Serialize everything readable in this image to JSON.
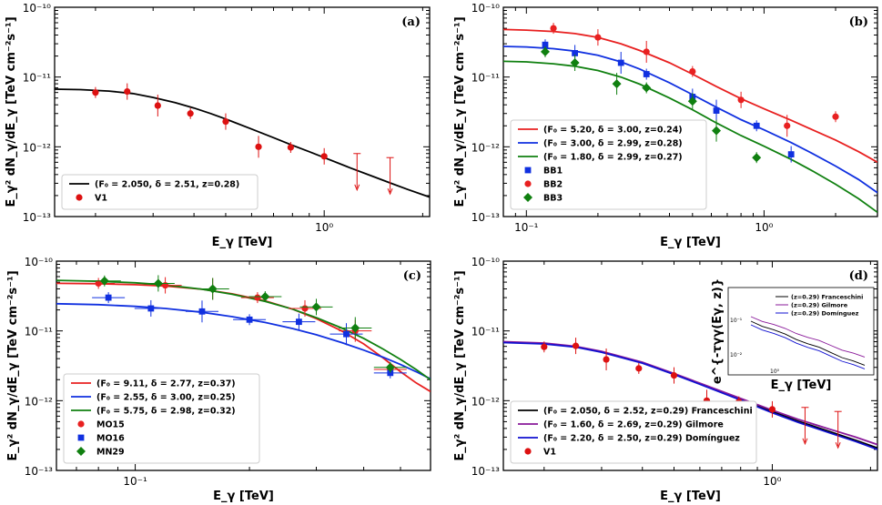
{
  "chart_data": [
    {
      "panel": "(a)",
      "type": "line",
      "xscale": "log",
      "yscale": "log",
      "xlim": [
        0.15,
        2.1
      ],
      "ylim": [
        1e-13,
        1e-10
      ],
      "xlabel": "E_γ [TeV]",
      "ylabel": "E_γ² dN_γ/dE_γ [TeV cm⁻²s⁻¹]",
      "xticks": [
        {
          "v": 1,
          "label": "10⁰"
        }
      ],
      "yticks": [
        {
          "v": 1e-13,
          "label": "10⁻¹³"
        },
        {
          "v": 1e-12,
          "label": "10⁻¹²"
        },
        {
          "v": 1e-11,
          "label": "10⁻¹¹"
        },
        {
          "v": 1e-10,
          "label": "10⁻¹⁰"
        }
      ],
      "legend_position": "bottom-left",
      "series": [
        {
          "name": "(F₀ = 2.050, δ = 2.51, z=0.28)",
          "color": "#000000",
          "shape": "line",
          "x": [
            0.15,
            0.18,
            0.22,
            0.26,
            0.3,
            0.35,
            0.4,
            0.45,
            0.5,
            0.6,
            0.7,
            0.8,
            0.9,
            1.0,
            1.2,
            1.4,
            1.6,
            1.8,
            2.1
          ],
          "y": [
            6.7e-12,
            6.6e-12,
            6.3e-12,
            5.8e-12,
            5.1e-12,
            4.3e-12,
            3.6e-12,
            3e-12,
            2.5e-12,
            1.8e-12,
            1.35e-12,
            1.05e-12,
            8.5e-13,
            7e-13,
            5e-13,
            3.8e-13,
            3e-13,
            2.45e-13,
            1.9e-13
          ]
        }
      ],
      "points": [
        {
          "name": "V1",
          "color": "#dd1111",
          "shape": "circle",
          "x": [
            0.2,
            0.25,
            0.31,
            0.39,
            0.5,
            0.63,
            0.79,
            1.0,
            1.26,
            1.59
          ],
          "y": [
            6e-12,
            6.2e-12,
            3.9e-12,
            3e-12,
            2.3e-12,
            1e-12,
            9.8e-13,
            7.3e-13,
            null,
            null
          ],
          "upper_limits": [
            null,
            null,
            null,
            null,
            null,
            null,
            null,
            null,
            8e-13,
            7e-13
          ]
        }
      ],
      "label": "(a)"
    },
    {
      "panel": "(b)",
      "type": "line",
      "xscale": "log",
      "yscale": "log",
      "xlim": [
        0.08,
        3.0
      ],
      "ylim": [
        1e-13,
        1e-10
      ],
      "xlabel": "E_γ [TeV]",
      "ylabel": "E_γ² dN_γ/dE_γ [TeV cm⁻²s⁻¹]",
      "xticks": [
        {
          "v": 0.1,
          "label": "10⁻¹"
        },
        {
          "v": 1,
          "label": "10⁰"
        }
      ],
      "yticks": [
        {
          "v": 1e-13,
          "label": "10⁻¹³"
        },
        {
          "v": 1e-12,
          "label": "10⁻¹²"
        },
        {
          "v": 1e-11,
          "label": "10⁻¹¹"
        },
        {
          "v": 1e-10,
          "label": "10⁻¹⁰"
        }
      ],
      "legend_position": "bottom-left",
      "series": [
        {
          "name": "(F₀ = 5.20, δ = 3.00, z=0.24)",
          "color": "#e82020",
          "shape": "line",
          "x": [
            0.08,
            0.1,
            0.13,
            0.16,
            0.2,
            0.25,
            0.3,
            0.4,
            0.5,
            0.63,
            0.8,
            1.0,
            1.3,
            1.6,
            2.0,
            2.5,
            3.0
          ],
          "y": [
            4.8e-11,
            4.7e-11,
            4.5e-11,
            4.2e-11,
            3.7e-11,
            3e-11,
            2.4e-11,
            1.6e-11,
            1.1e-11,
            7.3e-12,
            4.9e-12,
            3.5e-12,
            2.4e-12,
            1.75e-12,
            1.25e-12,
            8.5e-13,
            6e-13
          ]
        },
        {
          "name": "(F₀ = 3.00, δ = 2.99, z=0.28)",
          "color": "#1030e0",
          "shape": "line",
          "x": [
            0.08,
            0.1,
            0.13,
            0.16,
            0.2,
            0.25,
            0.3,
            0.4,
            0.5,
            0.63,
            0.8,
            1.0,
            1.3,
            1.6,
            2.0,
            2.5,
            3.0
          ],
          "y": [
            2.75e-11,
            2.7e-11,
            2.55e-11,
            2.35e-11,
            2.05e-11,
            1.65e-11,
            1.3e-11,
            8.3e-12,
            5.6e-12,
            3.7e-12,
            2.45e-12,
            1.75e-12,
            1.15e-12,
            8e-13,
            5.3e-13,
            3.4e-13,
            2.2e-13
          ]
        },
        {
          "name": "(F₀ = 1.80, δ = 2.99, z=0.27)",
          "color": "#108010",
          "shape": "line",
          "x": [
            0.08,
            0.1,
            0.13,
            0.16,
            0.2,
            0.25,
            0.3,
            0.4,
            0.5,
            0.63,
            0.8,
            1.0,
            1.3,
            1.6,
            2.0,
            2.5,
            3.0
          ],
          "y": [
            1.68e-11,
            1.65e-11,
            1.55e-11,
            1.43e-11,
            1.24e-11,
            1e-11,
            7.9e-12,
            5e-12,
            3.4e-12,
            2.2e-12,
            1.45e-12,
            1.02e-12,
            6.6e-13,
            4.5e-13,
            2.9e-13,
            1.8e-13,
            1.15e-13
          ]
        }
      ],
      "points": [
        {
          "name": "BB1",
          "color": "#1030e0",
          "shape": "square",
          "x": [
            0.12,
            0.16,
            0.25,
            0.32,
            0.5,
            0.63,
            0.93,
            1.3
          ],
          "y": [
            2.9e-11,
            2.2e-11,
            1.6e-11,
            1.1e-11,
            5.2e-12,
            3.3e-12,
            2e-12,
            7.8e-13
          ]
        },
        {
          "name": "BB2",
          "color": "#e82020",
          "shape": "circle",
          "x": [
            0.13,
            0.2,
            0.32,
            0.5,
            0.8,
            1.25,
            2.0
          ],
          "y": [
            5e-11,
            3.7e-11,
            2.3e-11,
            1.2e-11,
            4.7e-12,
            2e-12,
            2.7e-12
          ]
        },
        {
          "name": "BB3",
          "color": "#108010",
          "shape": "diamond",
          "x": [
            0.12,
            0.16,
            0.24,
            0.32,
            0.5,
            0.63,
            0.93
          ],
          "y": [
            2.3e-11,
            1.6e-11,
            8e-12,
            7e-12,
            4.5e-12,
            1.7e-12,
            7e-13
          ]
        }
      ],
      "label": "(b)"
    },
    {
      "panel": "(c)",
      "type": "line",
      "xscale": "log",
      "yscale": "log",
      "xlim": [
        0.062,
        0.6
      ],
      "ylim": [
        1e-13,
        1e-10
      ],
      "xlabel": "E_γ [TeV]",
      "ylabel": "E_γ² dN_γ/dE_γ [TeV cm⁻²s⁻¹]",
      "xticks": [
        {
          "v": 0.1,
          "label": "10⁻¹"
        }
      ],
      "yticks": [
        {
          "v": 1e-13,
          "label": "10⁻¹³"
        },
        {
          "v": 1e-12,
          "label": "10⁻¹²"
        },
        {
          "v": 1e-11,
          "label": "10⁻¹¹"
        },
        {
          "v": 1e-10,
          "label": "10⁻¹⁰"
        }
      ],
      "legend_position": "bottom-left",
      "series": [
        {
          "name": "(F₀ = 9.11, δ = 2.77, z=0.37)",
          "color": "#e82020",
          "shape": "line",
          "x": [
            0.062,
            0.08,
            0.1,
            0.12,
            0.15,
            0.18,
            0.22,
            0.26,
            0.3,
            0.35,
            0.4,
            0.45,
            0.5,
            0.55,
            0.6
          ],
          "y": [
            4.8e-11,
            4.75e-11,
            4.6e-11,
            4.4e-11,
            3.95e-11,
            3.4e-11,
            2.7e-11,
            2.05e-11,
            1.5e-11,
            1e-11,
            6.5e-12,
            4.1e-12,
            2.6e-12,
            1.8e-12,
            1.35e-12
          ]
        },
        {
          "name": "(F₀ = 2.55, δ = 3.00, z=0.25)",
          "color": "#1030e0",
          "shape": "line",
          "x": [
            0.062,
            0.08,
            0.1,
            0.12,
            0.15,
            0.18,
            0.22,
            0.26,
            0.3,
            0.35,
            0.4,
            0.45,
            0.5,
            0.55,
            0.6
          ],
          "y": [
            2.45e-11,
            2.38e-11,
            2.25e-11,
            2.1e-11,
            1.85e-11,
            1.6e-11,
            1.32e-11,
            1.08e-11,
            8.8e-12,
            6.8e-12,
            5.3e-12,
            4.2e-12,
            3.3e-12,
            2.6e-12,
            2.05e-12
          ]
        },
        {
          "name": "(F₀ = 5.75, δ = 2.98, z=0.32)",
          "color": "#108010",
          "shape": "line",
          "x": [
            0.062,
            0.08,
            0.1,
            0.12,
            0.15,
            0.18,
            0.22,
            0.26,
            0.3,
            0.35,
            0.4,
            0.45,
            0.5,
            0.55,
            0.6
          ],
          "y": [
            5.3e-11,
            5.15e-11,
            4.9e-11,
            4.55e-11,
            3.95e-11,
            3.35e-11,
            2.65e-11,
            2.05e-11,
            1.55e-11,
            1.1e-11,
            7.8e-12,
            5.5e-12,
            3.9e-12,
            2.8e-12,
            2e-12
          ]
        }
      ],
      "points": [
        {
          "name": "MO15",
          "color": "#e82020",
          "shape": "circle",
          "x": [
            0.08,
            0.12,
            0.16,
            0.21,
            0.28,
            0.38,
            0.47
          ],
          "y": [
            4.8e-11,
            4.5e-11,
            4e-11,
            3e-11,
            2.1e-11,
            1e-11,
            2.8e-12
          ]
        },
        {
          "name": "MO16",
          "color": "#1030e0",
          "shape": "square",
          "x": [
            0.085,
            0.11,
            0.15,
            0.2,
            0.27,
            0.36,
            0.47
          ],
          "y": [
            3e-11,
            2.1e-11,
            1.9e-11,
            1.45e-11,
            1.35e-11,
            9e-12,
            2.5e-12
          ]
        },
        {
          "name": "MN29",
          "color": "#108010",
          "shape": "diamond",
          "x": [
            0.083,
            0.115,
            0.16,
            0.22,
            0.3,
            0.38,
            0.47
          ],
          "y": [
            5.2e-11,
            4.8e-11,
            4e-11,
            3.1e-11,
            2.2e-11,
            1.1e-11,
            3e-12
          ]
        }
      ],
      "label": "(c)"
    },
    {
      "panel": "(d)",
      "type": "line",
      "xscale": "log",
      "yscale": "log",
      "xlim": [
        0.15,
        2.1
      ],
      "ylim": [
        1e-13,
        1e-10
      ],
      "xlabel": "E_γ [TeV]",
      "ylabel": "E_γ² dN_γ/dE_γ [TeV cm⁻²s⁻¹]",
      "xticks": [
        {
          "v": 1,
          "label": "10⁰"
        }
      ],
      "yticks": [
        {
          "v": 1e-13,
          "label": "10⁻¹³"
        },
        {
          "v": 1e-12,
          "label": "10⁻¹²"
        },
        {
          "v": 1e-11,
          "label": "10⁻¹¹"
        },
        {
          "v": 1e-10,
          "label": "10⁻¹⁰"
        }
      ],
      "legend_position": "bottom-left",
      "series": [
        {
          "name": "(F₀ = 2.050, δ = 2.52, z=0.29) Franceschini",
          "color": "#000000",
          "shape": "line",
          "x": [
            0.15,
            0.2,
            0.25,
            0.3,
            0.4,
            0.5,
            0.6,
            0.8,
            1.0,
            1.2,
            1.5,
            1.8,
            2.1
          ],
          "y": [
            6.9e-12,
            6.6e-12,
            5.9e-12,
            5e-12,
            3.5e-12,
            2.4e-12,
            1.75e-12,
            1.05e-12,
            7e-13,
            5.1e-13,
            3.6e-13,
            2.7e-13,
            2.1e-13
          ]
        },
        {
          "name": "(F₀ = 1.60, δ = 2.69, z=0.29) Gilmore",
          "color": "#8a1a9a",
          "shape": "line",
          "x": [
            0.15,
            0.2,
            0.25,
            0.3,
            0.4,
            0.5,
            0.6,
            0.8,
            1.0,
            1.2,
            1.5,
            1.8,
            2.1
          ],
          "y": [
            7e-12,
            6.7e-12,
            6e-12,
            5.1e-12,
            3.55e-12,
            2.45e-12,
            1.78e-12,
            1.08e-12,
            7.3e-13,
            5.4e-13,
            3.9e-13,
            3e-13,
            2.35e-13
          ]
        },
        {
          "name": "(F₀ = 2.20, δ = 2.50, z=0.29) Domínguez",
          "color": "#1010d0",
          "shape": "line",
          "x": [
            0.15,
            0.2,
            0.25,
            0.3,
            0.4,
            0.5,
            0.6,
            0.8,
            1.0,
            1.2,
            1.5,
            1.8,
            2.1
          ],
          "y": [
            6.8e-12,
            6.5e-12,
            5.85e-12,
            4.95e-12,
            3.45e-12,
            2.38e-12,
            1.72e-12,
            1.02e-12,
            6.7e-13,
            4.9e-13,
            3.45e-13,
            2.6e-13,
            2e-13
          ]
        }
      ],
      "points": [
        {
          "name": "V1",
          "color": "#dd1111",
          "shape": "circle",
          "x": [
            0.2,
            0.25,
            0.31,
            0.39,
            0.5,
            0.63,
            0.79,
            1.0,
            1.26,
            1.59
          ],
          "y": [
            5.9e-12,
            6.1e-12,
            3.9e-12,
            2.9e-12,
            2.3e-12,
            1e-12,
            9.6e-13,
            7.5e-13,
            null,
            null
          ],
          "upper_limits": [
            null,
            null,
            null,
            null,
            null,
            null,
            null,
            null,
            8e-13,
            7e-13
          ]
        }
      ],
      "label": "(d)",
      "inset": {
        "ylabel": "e^{-τγγ(Eγ, z)}",
        "xlabel": "E_γ [TeV]",
        "xtick_label": "10⁰",
        "ytick_labels": [
          "10⁻¹",
          "10⁻²"
        ],
        "legend": [
          {
            "name": "(z=0.29) Franceschini",
            "color": "#000000"
          },
          {
            "name": "(z=0.29) Gilmore",
            "color": "#8a1a9a"
          },
          {
            "name": "(z=0.29) Domínguez",
            "color": "#1010d0"
          }
        ]
      }
    }
  ]
}
